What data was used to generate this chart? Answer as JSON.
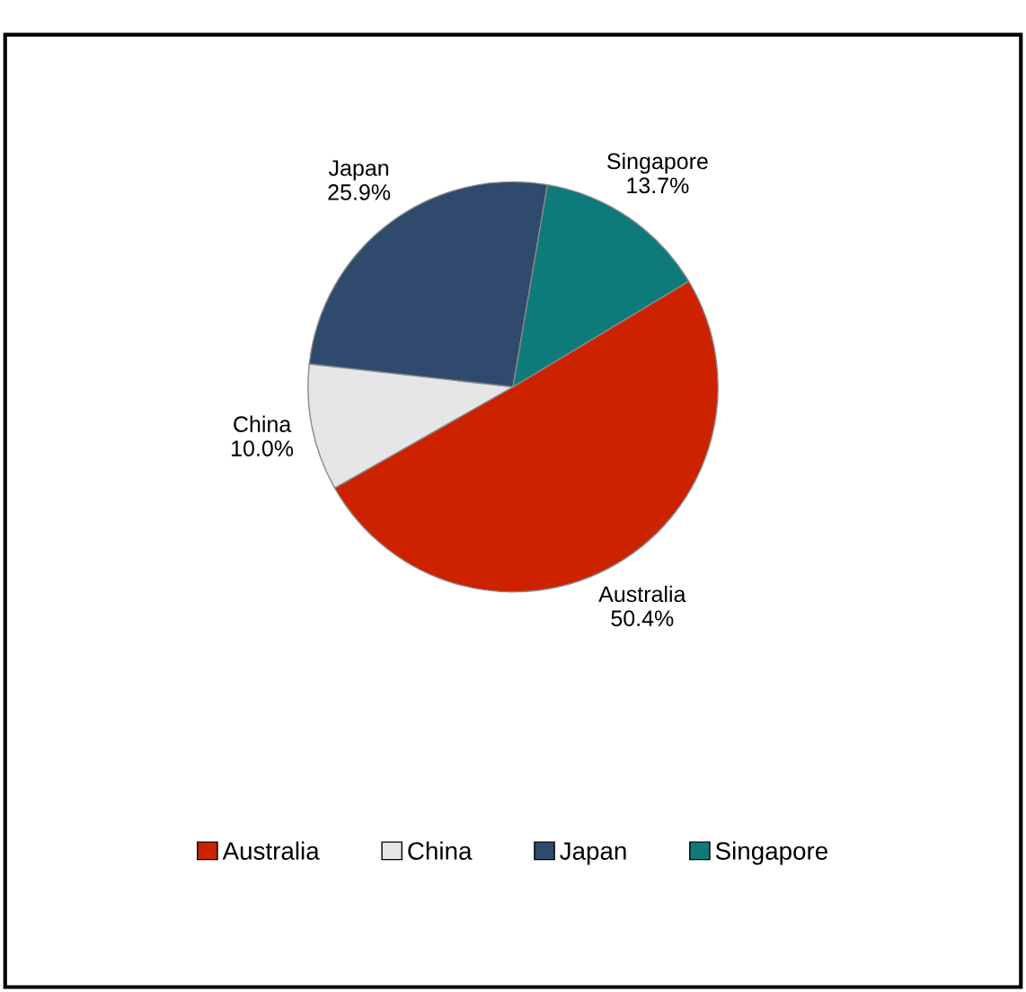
{
  "chart_data": {
    "type": "pie",
    "categories": [
      "Australia",
      "China",
      "Japan",
      "Singapore"
    ],
    "values": [
      50.4,
      10.0,
      25.9,
      13.7
    ],
    "value_labels": [
      "50.4%",
      "10.0%",
      "25.9%",
      "13.7%"
    ],
    "colors": [
      "#cc2200",
      "#e6e6e6",
      "#2f4a6d",
      "#0f7a7a"
    ],
    "legend": "bottom"
  }
}
